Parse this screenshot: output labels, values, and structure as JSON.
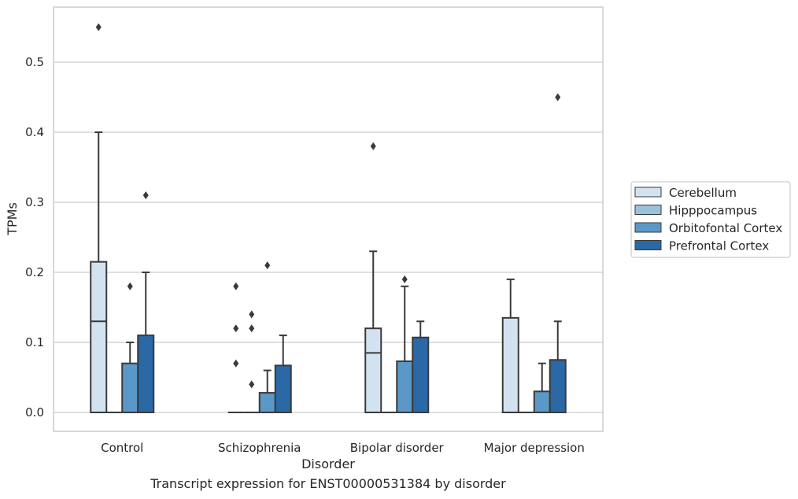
{
  "caption": "Transcript expression for ENST00000531384 by disorder",
  "chart_data": {
    "type": "box",
    "xlabel": "Disorder",
    "ylabel": "TPMs",
    "categories": [
      "Control",
      "Schizophrenia",
      "Bipolar disorder",
      "Major depression"
    ],
    "ylim": [
      -0.027,
      0.58
    ],
    "yticks": [
      0.0,
      0.1,
      0.2,
      0.3,
      0.4,
      0.5
    ],
    "ytick_labels": [
      "0.0",
      "0.1",
      "0.2",
      "0.3",
      "0.4",
      "0.5"
    ],
    "grid": "horizontal",
    "legend_position": "right",
    "series": [
      {
        "name": "Cerebellum",
        "color": "#d3e2f0",
        "boxes": [
          {
            "whisker_low": 0.0,
            "q1": 0.0,
            "median": 0.13,
            "q3": 0.215,
            "whisker_high": 0.4,
            "outliers": [
              0.55
            ]
          },
          {
            "whisker_low": 0.0,
            "q1": 0.0,
            "median": 0.0,
            "q3": 0.0,
            "whisker_high": 0.0,
            "outliers": [
              0.18,
              0.12,
              0.07
            ]
          },
          {
            "whisker_low": 0.0,
            "q1": 0.0,
            "median": 0.085,
            "q3": 0.12,
            "whisker_high": 0.23,
            "outliers": [
              0.38
            ]
          },
          {
            "whisker_low": 0.0,
            "q1": 0.0,
            "median": 0.0,
            "q3": 0.135,
            "whisker_high": 0.19,
            "outliers": []
          }
        ]
      },
      {
        "name": "Hipppocampus",
        "color": "#9ac2dd",
        "boxes": [
          {
            "whisker_low": 0.0,
            "q1": 0.0,
            "median": 0.0,
            "q3": 0.0,
            "whisker_high": 0.0,
            "outliers": []
          },
          {
            "whisker_low": 0.0,
            "q1": 0.0,
            "median": 0.0,
            "q3": 0.0,
            "whisker_high": 0.0,
            "outliers": [
              0.14,
              0.12,
              0.04
            ]
          },
          {
            "whisker_low": 0.0,
            "q1": 0.0,
            "median": 0.0,
            "q3": 0.0,
            "whisker_high": 0.0,
            "outliers": []
          },
          {
            "whisker_low": 0.0,
            "q1": 0.0,
            "median": 0.0,
            "q3": 0.0,
            "whisker_high": 0.0,
            "outliers": []
          }
        ]
      },
      {
        "name": "Orbitofontal Cortex",
        "color": "#5a98c8",
        "boxes": [
          {
            "whisker_low": 0.0,
            "q1": 0.0,
            "median": 0.0,
            "q3": 0.07,
            "whisker_high": 0.1,
            "outliers": [
              0.18
            ]
          },
          {
            "whisker_low": 0.0,
            "q1": 0.0,
            "median": 0.0,
            "q3": 0.028,
            "whisker_high": 0.06,
            "outliers": [
              0.21
            ]
          },
          {
            "whisker_low": 0.0,
            "q1": 0.0,
            "median": 0.0,
            "q3": 0.073,
            "whisker_high": 0.18,
            "outliers": [
              0.19
            ]
          },
          {
            "whisker_low": 0.0,
            "q1": 0.0,
            "median": 0.0,
            "q3": 0.03,
            "whisker_high": 0.07,
            "outliers": []
          }
        ]
      },
      {
        "name": "Prefrontal Cortex",
        "color": "#2b68a6",
        "boxes": [
          {
            "whisker_low": 0.0,
            "q1": 0.0,
            "median": 0.0,
            "q3": 0.11,
            "whisker_high": 0.2,
            "outliers": [
              0.31
            ]
          },
          {
            "whisker_low": 0.0,
            "q1": 0.0,
            "median": 0.0,
            "q3": 0.067,
            "whisker_high": 0.11,
            "outliers": []
          },
          {
            "whisker_low": 0.0,
            "q1": 0.0,
            "median": 0.0,
            "q3": 0.107,
            "whisker_high": 0.13,
            "outliers": []
          },
          {
            "whisker_low": 0.0,
            "q1": 0.0,
            "median": 0.0,
            "q3": 0.075,
            "whisker_high": 0.13,
            "outliers": [
              0.45
            ]
          }
        ]
      }
    ]
  }
}
